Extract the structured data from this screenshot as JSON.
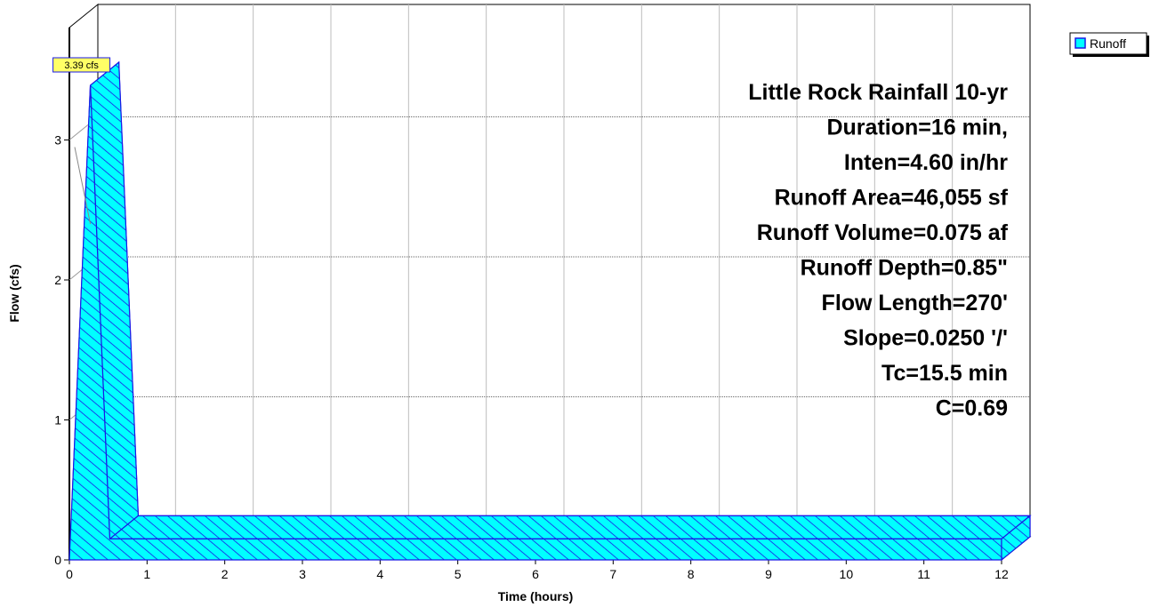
{
  "chart_data": {
    "type": "area",
    "xlabel": "Time  (hours)",
    "ylabel": "Flow  (cfs)",
    "xlim": [
      0,
      12
    ],
    "ylim": [
      0,
      3.5
    ],
    "x_ticks": [
      "0",
      "1",
      "2",
      "3",
      "4",
      "5",
      "6",
      "7",
      "8",
      "9",
      "10",
      "11",
      "12"
    ],
    "y_ticks": [
      "0",
      "1",
      "2",
      "3"
    ],
    "grid": true,
    "legend_position": "top-right",
    "series": [
      {
        "name": "Runoff",
        "color": "#00FFFF",
        "hatch_color": "#1A1AE6",
        "x": [
          0,
          0.27,
          0.52,
          12
        ],
        "y": [
          0,
          3.39,
          0,
          0
        ]
      }
    ],
    "peak_annotation": "3.39 cfs",
    "info_lines": [
      "Little Rock Rainfall 10-yr",
      "Duration=16 min,",
      "Inten=4.60 in/hr",
      "Runoff Area=46,055 sf",
      "Runoff Volume=0.075 af",
      "Runoff Depth=0.85\"",
      "Flow Length=270'",
      "Slope=0.0250 '/'",
      "Tc=15.5 min",
      "C=0.69"
    ]
  }
}
